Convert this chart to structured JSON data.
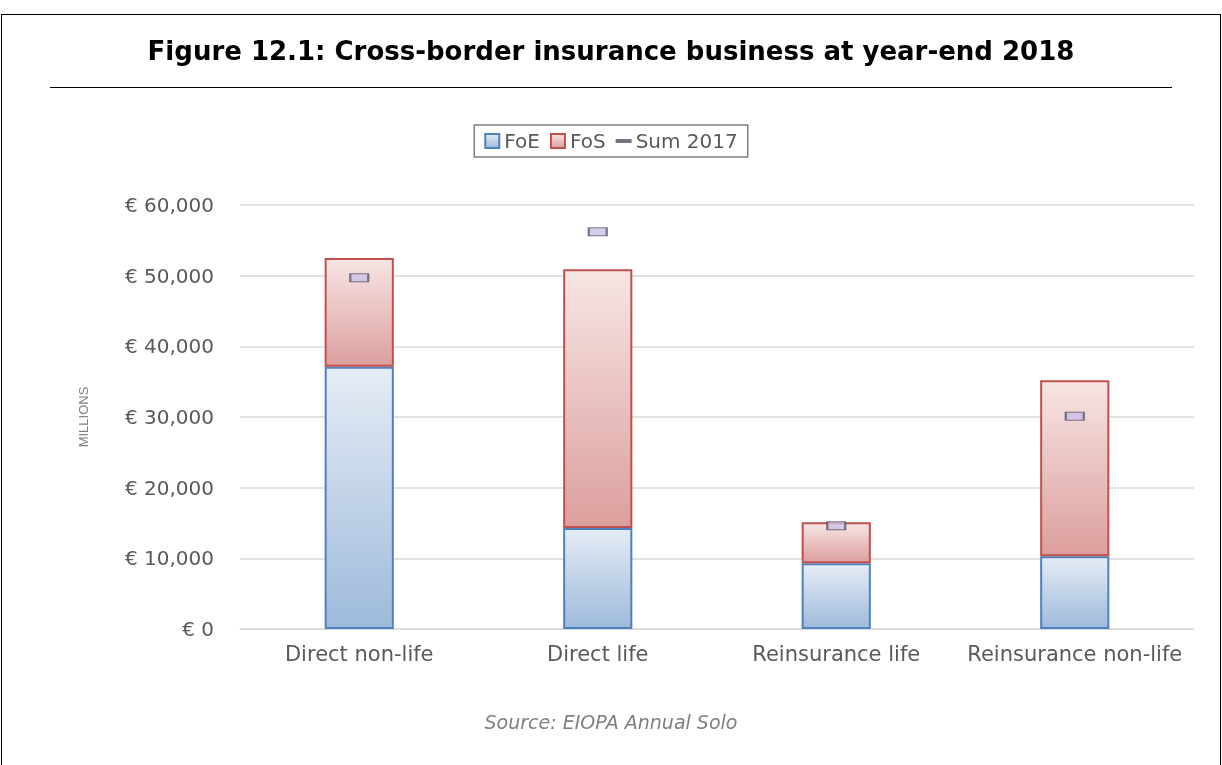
{
  "chart_data": {
    "type": "bar",
    "title": "Figure 12.1: Cross-border insurance business at year-end 2018",
    "categories": [
      "Direct non-life",
      "Direct life",
      "Reinsurance life",
      "Reinsurance non-life"
    ],
    "stacked": true,
    "series": [
      {
        "name": "FoE",
        "color": "#4f81bd",
        "values": [
          37100,
          14300,
          9300,
          10300
        ]
      },
      {
        "name": "FoS",
        "color": "#c0504d",
        "values": [
          15400,
          36600,
          5800,
          24900
        ]
      },
      {
        "name": "Sum 2017",
        "type": "scatter",
        "color": "#ccc0e8",
        "values": [
          49700,
          56200,
          14600,
          30100
        ]
      }
    ],
    "ylabel": "MILLIONS",
    "ylim": [
      0,
      60000
    ],
    "yticks": [
      {
        "value": 0,
        "label": "€ 0"
      },
      {
        "value": 10000,
        "label": "€ 10,000"
      },
      {
        "value": 20000,
        "label": "€ 20,000"
      },
      {
        "value": 30000,
        "label": "€ 30,000"
      },
      {
        "value": 40000,
        "label": "€ 40,000"
      },
      {
        "value": 50000,
        "label": "€ 50,000"
      },
      {
        "value": 60000,
        "label": "€ 60,000"
      }
    ],
    "grid": "y",
    "legend": "top",
    "annotations": [
      "Source: EIOPA Annual Solo"
    ]
  }
}
